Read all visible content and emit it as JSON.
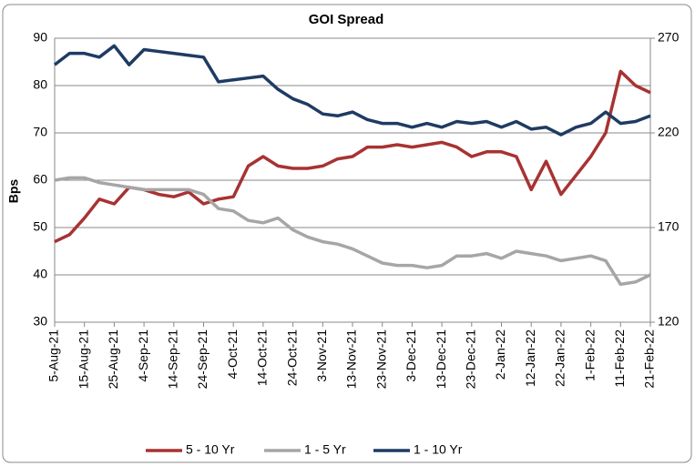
{
  "chart_data": {
    "type": "line",
    "title": "GOI Spread",
    "y_label": "Bps",
    "x": [
      "5-Aug-21",
      "10-Aug-21",
      "15-Aug-21",
      "20-Aug-21",
      "25-Aug-21",
      "30-Aug-21",
      "4-Sep-21",
      "9-Sep-21",
      "14-Sep-21",
      "19-Sep-21",
      "24-Sep-21",
      "29-Sep-21",
      "4-Oct-21",
      "9-Oct-21",
      "14-Oct-21",
      "19-Oct-21",
      "24-Oct-21",
      "29-Oct-21",
      "3-Nov-21",
      "8-Nov-21",
      "13-Nov-21",
      "18-Nov-21",
      "23-Nov-21",
      "28-Nov-21",
      "3-Dec-21",
      "8-Dec-21",
      "13-Dec-21",
      "18-Dec-21",
      "23-Dec-21",
      "28-Dec-21",
      "2-Jan-22",
      "7-Jan-22",
      "12-Jan-22",
      "17-Jan-22",
      "22-Jan-22",
      "27-Jan-22",
      "1-Feb-22",
      "6-Feb-22",
      "11-Feb-22",
      "16-Feb-22",
      "21-Feb-22"
    ],
    "series": [
      {
        "name": "5 - 10 Yr",
        "color": "#a83232",
        "axis": "y",
        "values": [
          47,
          48.5,
          52,
          56,
          55,
          58.5,
          58,
          57,
          56.5,
          57.5,
          55,
          56,
          56.5,
          63,
          65,
          63,
          62.5,
          62.5,
          63,
          64.5,
          65,
          67,
          67,
          67.5,
          67,
          67.5,
          68,
          67,
          65,
          66,
          66,
          65,
          58,
          64,
          57,
          61,
          65,
          70,
          83,
          80,
          78.5
        ]
      },
      {
        "name": "1 - 5 Yr",
        "color": "#a6a6a6",
        "axis": "y",
        "values": [
          60,
          60.5,
          60.5,
          59.5,
          59,
          58.5,
          58,
          58,
          58,
          58,
          57,
          54,
          53.5,
          51.5,
          51,
          52,
          49.5,
          48,
          47,
          46.5,
          45.5,
          44,
          42.5,
          42,
          42,
          41.5,
          42,
          44,
          44,
          44.5,
          43.5,
          45,
          44.5,
          44,
          43,
          43.5,
          44,
          43,
          38,
          38.5,
          40
        ]
      },
      {
        "name": "1 - 10 Yr",
        "color": "#1f3b63",
        "axis": "y2",
        "values": [
          256,
          262,
          262,
          260,
          266,
          256,
          264,
          263,
          262,
          261,
          260,
          247,
          248,
          249,
          250,
          243,
          238,
          235,
          230,
          229,
          231,
          227,
          225,
          225,
          223,
          225,
          223,
          226,
          225,
          226,
          223,
          226,
          222,
          223,
          219,
          223,
          225,
          231,
          225,
          226,
          229
        ]
      }
    ],
    "ylim": [
      30,
      90
    ],
    "yticks": [
      30,
      40,
      50,
      60,
      70,
      80,
      90
    ],
    "y2lim": [
      120,
      270
    ],
    "y2ticks": [
      120,
      170,
      220,
      270
    ],
    "grid": true,
    "legend": "bottom"
  }
}
